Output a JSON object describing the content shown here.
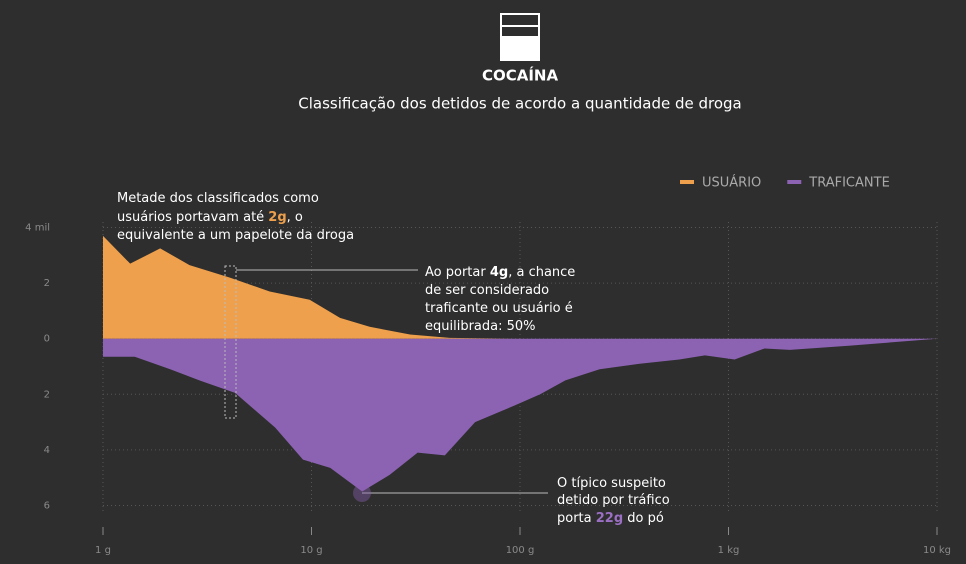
{
  "chart_data": {
    "type": "area",
    "title": "COCAÍNA",
    "subtitle": "Classificação dos detidos de acordo a quantidade de droga",
    "xscale": "log",
    "xlim": [
      1,
      10000
    ],
    "xticks": [
      {
        "value": 1,
        "label": "1 g"
      },
      {
        "value": 10,
        "label": "10 g"
      },
      {
        "value": 100,
        "label": "100 g"
      },
      {
        "value": 1000,
        "label": "1 kg"
      },
      {
        "value": 10000,
        "label": "10 kg"
      }
    ],
    "ylim": [
      -6.2,
      4.2
    ],
    "yticks": [
      {
        "value": 4,
        "label": "4 mil"
      },
      2,
      0,
      {
        "value": -2,
        "label": "2"
      },
      {
        "value": -4,
        "label": "4"
      },
      {
        "value": -6,
        "label": "6"
      }
    ],
    "grid": true,
    "legend": "top-right",
    "series": [
      {
        "name": "USUÁRIO",
        "color": "#eea04c",
        "x": [
          1,
          1.35,
          1.88,
          2.6,
          4.06,
          6.3,
          9.8,
          13.7,
          19,
          29.7,
          46,
          100,
          10000
        ],
        "values": [
          3.7,
          2.7,
          3.25,
          2.65,
          2.2,
          1.7,
          1.4,
          0.75,
          0.43,
          0.15,
          0.03,
          0,
          0
        ]
      },
      {
        "name": "TRAFICANTE",
        "color": "#8c62b3",
        "x": [
          1,
          1.42,
          2.1,
          2.9,
          4.3,
          6.7,
          9.1,
          12.3,
          17.5,
          23.7,
          32.3,
          43.6,
          60.9,
          94.5,
          125,
          165,
          241,
          375,
          581,
          771,
          1070,
          1490,
          1970,
          3840,
          10000
        ],
        "values": [
          -0.65,
          -0.65,
          -1.1,
          -1.5,
          -1.95,
          -3.2,
          -4.35,
          -4.65,
          -5.5,
          -4.9,
          -4.1,
          -4.2,
          -3.0,
          -2.4,
          -2.0,
          -1.5,
          -1.1,
          -0.9,
          -0.75,
          -0.6,
          -0.75,
          -0.35,
          -0.4,
          -0.25,
          0
        ]
      }
    ],
    "annotations": [
      {
        "lines": [
          [
            "Metade dos classificados como"
          ],
          [
            "usuários portavam até ",
            "2g",
            ", o"
          ],
          [
            "equivalente a um papelote da droga"
          ]
        ]
      },
      {
        "lines": [
          [
            "Ao portar ",
            "4g",
            ", a chance"
          ],
          [
            "de ser considerado"
          ],
          [
            "traficante ou usuário é"
          ],
          [
            "equilibrada: 50%"
          ]
        ]
      },
      {
        "lines": [
          [
            "O típico suspeito"
          ],
          [
            "detido por tráfico"
          ],
          [
            "porta ",
            "22g",
            " do pó"
          ]
        ]
      }
    ]
  }
}
